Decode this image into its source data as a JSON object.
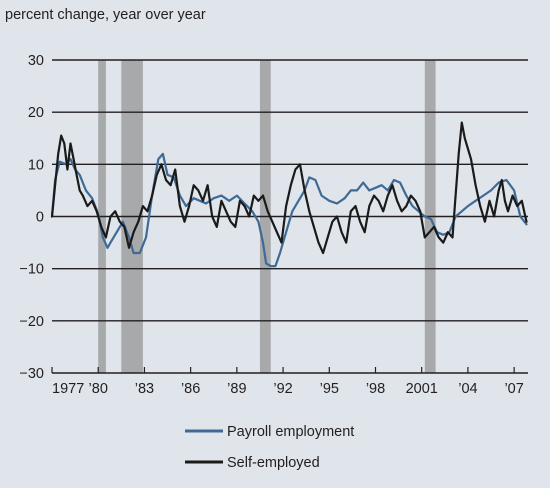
{
  "chart_data": {
    "type": "line",
    "ylabel": "percent change, year over year",
    "ylim": [
      -30,
      30
    ],
    "yticks": [
      -30,
      -20,
      -10,
      0,
      10,
      20,
      30
    ],
    "ytick_labels": [
      "−30",
      "−20",
      "−10",
      "0",
      "10",
      "20",
      "30"
    ],
    "xlim": [
      1977,
      2007.9
    ],
    "xticks": [
      1977,
      1980,
      1983,
      1986,
      1989,
      1992,
      1995,
      1998,
      2001,
      2004,
      2007
    ],
    "xtick_labels": [
      "1977",
      "’80",
      "’83",
      "’86",
      "’89",
      "’92",
      "’95",
      "’98",
      "2001",
      "’04",
      "’07"
    ],
    "grid": true,
    "legend_position": "bottom-center",
    "recessions": [
      [
        1980.0,
        1980.5
      ],
      [
        1981.5,
        1982.9
      ],
      [
        1990.5,
        1991.2
      ],
      [
        2001.2,
        2001.9
      ]
    ],
    "colors": {
      "payroll": "#3f6a96",
      "self": "#1a1a1a",
      "recession": "#a7a9ab",
      "grid": "#231f20"
    },
    "series": [
      {
        "name": "Payroll employment",
        "key": "payroll",
        "x": [
          1977,
          1977.2,
          1977.5,
          1977.9,
          1978.2,
          1978.5,
          1978.8,
          1979.2,
          1979.6,
          1980,
          1980.3,
          1980.6,
          1980.8,
          1981.2,
          1981.6,
          1982,
          1982.3,
          1982.7,
          1983.1,
          1983.5,
          1983.9,
          1984.2,
          1984.5,
          1984.9,
          1985.3,
          1985.7,
          1986.2,
          1986.6,
          1987,
          1987.5,
          1988,
          1988.5,
          1989,
          1989.5,
          1990,
          1990.4,
          1990.7,
          1990.9,
          1991.2,
          1991.5,
          1991.8,
          1992.2,
          1992.6,
          1993.0,
          1993.4,
          1993.7,
          1994.1,
          1994.5,
          1995,
          1995.5,
          1996,
          1996.4,
          1996.8,
          1997.2,
          1997.6,
          1998,
          1998.4,
          1998.8,
          1999.2,
          1999.6,
          2000,
          2000.4,
          2000.8,
          2001.2,
          2001.6,
          2002,
          2002.4,
          2002.8,
          2003.2,
          2003.6,
          2004,
          2004.5,
          2005,
          2005.5,
          2006,
          2006.5,
          2007,
          2007.4,
          2007.8
        ],
        "y": [
          0,
          7,
          10.5,
          10,
          11,
          9,
          8,
          5,
          3.5,
          0.5,
          -4,
          -6,
          -5,
          -3,
          -1,
          -4,
          -7,
          -7,
          -4,
          4,
          11,
          12,
          8,
          7.5,
          4,
          2,
          3.5,
          3,
          2.5,
          3.5,
          4,
          3,
          4,
          2.5,
          1,
          -1,
          -5,
          -9,
          -9.5,
          -9.5,
          -7,
          -3,
          1,
          3,
          5,
          7.5,
          7,
          4,
          3,
          2.5,
          3.5,
          5,
          5,
          6.5,
          5,
          5.5,
          6,
          5,
          7,
          6.5,
          4,
          2,
          1,
          0,
          -0.5,
          -3,
          -3.5,
          -3,
          0,
          1,
          2,
          3,
          4,
          5,
          6.5,
          7,
          5,
          0,
          -1.5
        ]
      },
      {
        "name": "Self-employed",
        "key": "self",
        "x": [
          1977,
          1977.2,
          1977.4,
          1977.6,
          1977.8,
          1978,
          1978.2,
          1978.4,
          1978.6,
          1978.8,
          1979,
          1979.3,
          1979.6,
          1979.9,
          1980.2,
          1980.5,
          1980.8,
          1981.1,
          1981.4,
          1981.7,
          1982,
          1982.3,
          1982.6,
          1982.9,
          1983.2,
          1983.5,
          1983.8,
          1984.1,
          1984.4,
          1984.7,
          1985,
          1985.3,
          1985.6,
          1985.9,
          1986.2,
          1986.5,
          1986.8,
          1987.1,
          1987.4,
          1987.7,
          1988,
          1988.3,
          1988.6,
          1988.9,
          1989.2,
          1989.5,
          1989.8,
          1990.1,
          1990.4,
          1990.7,
          1991,
          1991.3,
          1991.6,
          1991.9,
          1992.2,
          1992.5,
          1992.8,
          1993.1,
          1993.4,
          1993.7,
          1994,
          1994.3,
          1994.6,
          1994.9,
          1995.2,
          1995.5,
          1995.8,
          1996.1,
          1996.4,
          1996.7,
          1997,
          1997.3,
          1997.6,
          1997.9,
          1998.2,
          1998.5,
          1998.8,
          1999.1,
          1999.4,
          1999.7,
          2000,
          2000.3,
          2000.6,
          2000.9,
          2001.2,
          2001.5,
          2001.8,
          2002.1,
          2002.4,
          2002.7,
          2003.0,
          2003.2,
          2003.4,
          2003.6,
          2003.8,
          2004.0,
          2004.2,
          2004.5,
          2004.8,
          2005.1,
          2005.4,
          2005.7,
          2006.0,
          2006.2,
          2006.4,
          2006.6,
          2006.9,
          2007.2,
          2007.5,
          2007.8
        ],
        "y": [
          0,
          6,
          12,
          15.5,
          14,
          9,
          14,
          11,
          8,
          5,
          4,
          2,
          3,
          1,
          -2,
          -4,
          0,
          1,
          -1,
          -2,
          -6,
          -3,
          -1,
          2,
          1,
          4,
          8,
          10,
          7,
          6,
          9,
          2,
          -1,
          2,
          6,
          5,
          3,
          6,
          0,
          -2,
          3,
          1,
          -1,
          -2,
          3,
          2,
          0,
          4,
          3,
          4,
          1,
          -1,
          -3,
          -5,
          2,
          6,
          9,
          10,
          5,
          1,
          -2,
          -5,
          -7,
          -4,
          -1,
          0,
          -3,
          -5,
          1,
          2,
          -1,
          -3,
          2,
          4,
          3,
          1,
          4,
          6,
          3,
          1,
          2,
          4,
          3,
          1,
          -4,
          -3,
          -2,
          -4,
          -5,
          -3,
          -4,
          4,
          12,
          18,
          15,
          13,
          11,
          6,
          2,
          -1,
          3,
          0,
          5,
          7,
          3,
          1,
          4,
          2,
          3,
          -1
        ]
      }
    ]
  }
}
